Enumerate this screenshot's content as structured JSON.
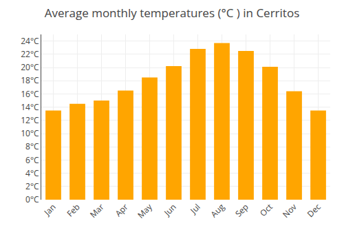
{
  "chart_data": {
    "type": "bar",
    "title": "Average monthly temperatures (°C ) in Cerritos",
    "categories": [
      "Jan",
      "Feb",
      "Mar",
      "Apr",
      "May",
      "Jun",
      "Jul",
      "Aug",
      "Sep",
      "Oct",
      "Nov",
      "Dec"
    ],
    "values": [
      13.5,
      14.5,
      15.0,
      16.5,
      18.5,
      20.2,
      22.8,
      23.7,
      22.5,
      20.1,
      16.4,
      13.5
    ],
    "color": "#FFA500",
    "ylim": [
      0,
      25
    ],
    "yticks": [
      {
        "value": 0,
        "label": "0°C"
      },
      {
        "value": 2,
        "label": "2°C"
      },
      {
        "value": 4,
        "label": "4°C"
      },
      {
        "value": 6,
        "label": "6°C"
      },
      {
        "value": 8,
        "label": "8°C"
      },
      {
        "value": 10,
        "label": "10°C"
      },
      {
        "value": 12,
        "label": "12°C"
      },
      {
        "value": 14,
        "label": "14°C"
      },
      {
        "value": 16,
        "label": "16°C"
      },
      {
        "value": 18,
        "label": "18°C"
      },
      {
        "value": 20,
        "label": "20°C"
      },
      {
        "value": 22,
        "label": "22°C"
      },
      {
        "value": 24,
        "label": "24°C"
      }
    ],
    "grid": true
  }
}
